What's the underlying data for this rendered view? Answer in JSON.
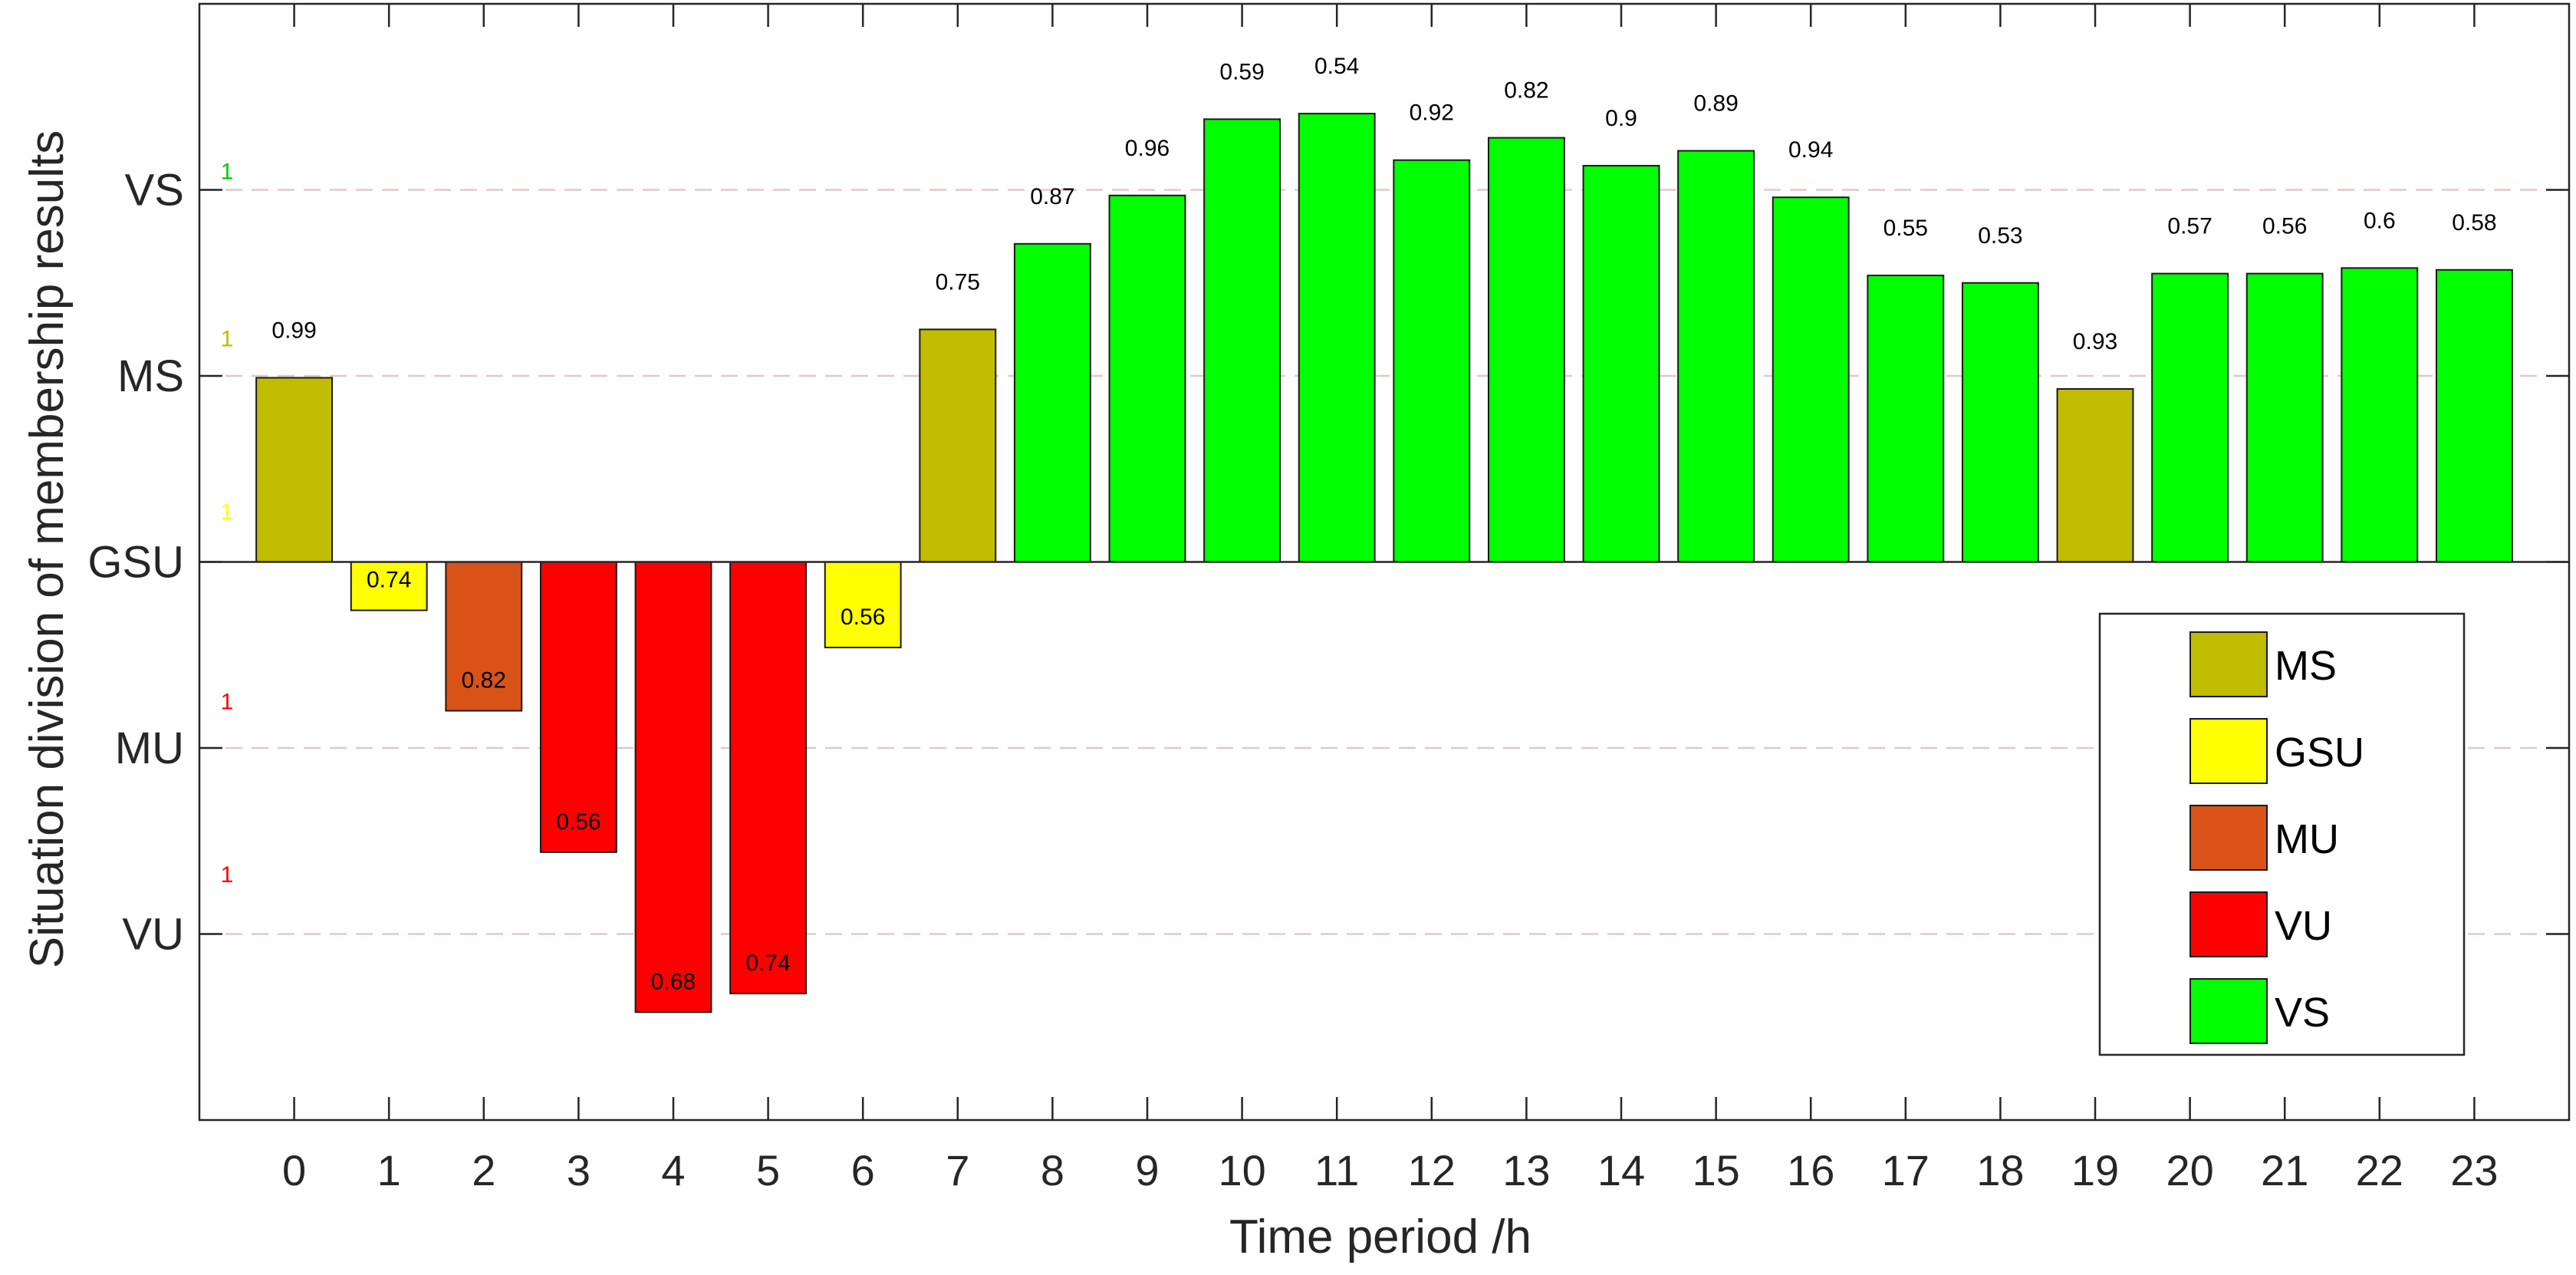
{
  "chart_data": {
    "type": "bar",
    "xlabel": "Time period /h",
    "ylabel": "Situation division of membership results",
    "categories": [
      "0",
      "1",
      "2",
      "3",
      "4",
      "5",
      "6",
      "7",
      "8",
      "9",
      "10",
      "11",
      "12",
      "13",
      "14",
      "15",
      "16",
      "17",
      "18",
      "19",
      "20",
      "21",
      "22",
      "23"
    ],
    "ytick_labels": [
      "VU",
      "MU",
      "GSU",
      "MS",
      "VS"
    ],
    "ytick_values": [
      -2,
      -1,
      0,
      1,
      2
    ],
    "ylim": [
      -3,
      3
    ],
    "xlim": [
      -1,
      24
    ],
    "grid": "horizontal dashed at level lines",
    "values": [
      0.99,
      -0.26,
      -0.8,
      -1.56,
      -2.42,
      -2.32,
      -0.46,
      1.25,
      1.71,
      1.97,
      2.38,
      2.41,
      2.16,
      2.28,
      2.13,
      2.21,
      1.96,
      1.54,
      1.5,
      0.93,
      1.55,
      1.55,
      1.58,
      1.57
    ],
    "categories_of_bars": [
      "MS",
      "GSU",
      "MU",
      "VU",
      "VU",
      "VU",
      "GSU",
      "MS",
      "VS",
      "VS",
      "VS",
      "VS",
      "VS",
      "VS",
      "VS",
      "VS",
      "VS",
      "VS",
      "VS",
      "MS",
      "VS",
      "VS",
      "VS",
      "VS"
    ],
    "data_labels": [
      "0.99",
      "0.74",
      "0.82",
      "0.56",
      "0.68",
      "0.74",
      "0.56",
      "0.75",
      "0.87",
      "0.96",
      "0.59",
      "0.54",
      "0.92",
      "0.82",
      "0.9",
      "0.89",
      "0.94",
      "0.55",
      "0.53",
      "0.93",
      "0.57",
      "0.56",
      "0.6",
      "0.58"
    ],
    "colors": {
      "MS": "#c0bc00",
      "GSU": "#ffff00",
      "MU": "#d95319",
      "VU": "#ff0000",
      "VS": "#00ff00"
    },
    "side_markers": [
      {
        "text": "1",
        "level": 2.1,
        "color": "#00cc00"
      },
      {
        "text": "1",
        "level": 1.2,
        "color": "#c0bc00"
      },
      {
        "text": "1",
        "level": 0.27,
        "color": "#ffff00"
      },
      {
        "text": "1",
        "level": -0.75,
        "color": "#ff0000"
      },
      {
        "text": "1",
        "level": -1.68,
        "color": "#ff0000"
      }
    ],
    "legend": {
      "placement": "lower-right",
      "entries": [
        {
          "label": "MS",
          "color": "#c0bc00"
        },
        {
          "label": "GSU",
          "color": "#ffff00"
        },
        {
          "label": "MU",
          "color": "#d95319"
        },
        {
          "label": "VU",
          "color": "#ff0000"
        },
        {
          "label": "VS",
          "color": "#00ff00"
        }
      ]
    }
  }
}
